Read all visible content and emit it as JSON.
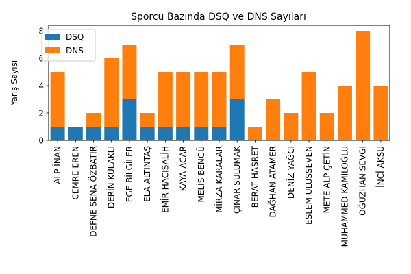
{
  "chart_data": {
    "type": "bar",
    "stacked": true,
    "title": "Sporcu Bazında DSQ ve DNS Sayıları",
    "xlabel": "",
    "ylabel": "Yarış Sayısı",
    "ylim": [
      0,
      8.4
    ],
    "yticks": [
      0,
      2,
      4,
      6,
      8
    ],
    "grid": false,
    "legend_position": "top-left",
    "categories": [
      "ALP İNAN",
      "CEMRE EREN",
      "DEFNE SENA ÖZBATIR",
      "DERİN KULAKLI",
      "EGE BİLGİLER",
      "ELA ALTINTAŞ",
      "EMİR HACISALİH",
      "KAYA ACAR",
      "MELİS BENGÜ",
      "MİRZA KARALAR",
      "ÇINAR SULUMAK",
      "BERAT HASRET",
      "DAĞHAN ATAMER",
      "DENİZ YAĞCI",
      "ESLEM ULUSSEVEN",
      "METE ALP ÇETİN",
      "MUHAMMED KAMİLOĞLU",
      "OĞUZHAN SEVGİ",
      "İNCİ AKSU"
    ],
    "series": [
      {
        "name": "DSQ",
        "color": "#1f77b4",
        "values": [
          1,
          1,
          1,
          1,
          3,
          1,
          1,
          1,
          1,
          1,
          3,
          0,
          0,
          0,
          0,
          0,
          0,
          0,
          0
        ]
      },
      {
        "name": "DNS",
        "color": "#ff7f0e",
        "values": [
          4,
          0,
          1,
          5,
          4,
          1,
          4,
          4,
          4,
          4,
          4,
          1,
          3,
          2,
          5,
          2,
          4,
          8,
          4
        ]
      }
    ]
  }
}
